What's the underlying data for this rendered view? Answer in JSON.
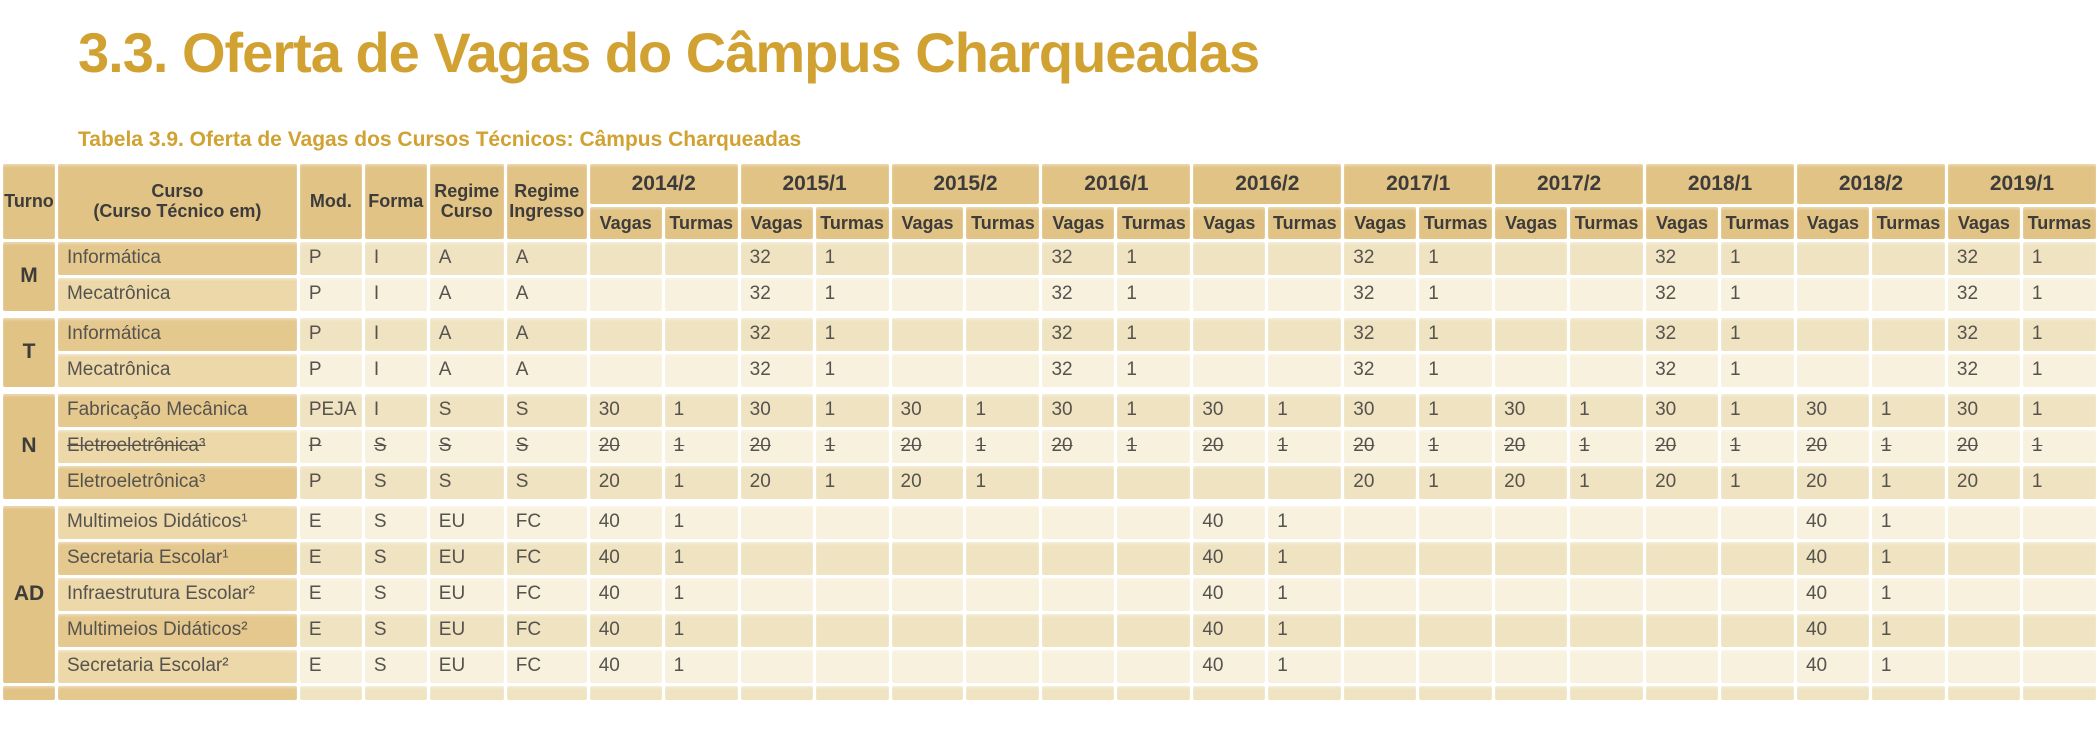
{
  "page_title": "3.3. Oferta de Vagas do Câmpus Charqueadas",
  "table_caption": "Tabela 3.9. Oferta de Vagas dos Cursos Técnicos: Câmpus Charqueadas",
  "colors": {
    "title_gold": "#d1a232",
    "header_tan": "#e2c386",
    "course_dark": "#e4c88e",
    "course_light": "#ecd8a9",
    "cell_dark": "#efe3c2",
    "cell_light": "#f8f1de",
    "header_text": "#3d3c3a",
    "cell_text": "#56534e"
  },
  "table": {
    "left_headers": [
      {
        "id": "turno",
        "lines": [
          "Turno"
        ]
      },
      {
        "id": "curso",
        "lines": [
          "Curso",
          "(Curso Técnico em)"
        ]
      },
      {
        "id": "mod",
        "lines": [
          "Mod."
        ]
      },
      {
        "id": "forma",
        "lines": [
          "Forma"
        ]
      },
      {
        "id": "regime_curso",
        "lines": [
          "Regime",
          "Curso"
        ]
      },
      {
        "id": "regime_ingresso",
        "lines": [
          "Regime",
          "Ingresso"
        ]
      }
    ],
    "semesters": [
      "2014/2",
      "2015/1",
      "2015/2",
      "2016/1",
      "2016/2",
      "2017/1",
      "2017/2",
      "2018/1",
      "2018/2",
      "2019/1"
    ],
    "sub_headers": [
      "Vagas",
      "Turmas"
    ],
    "groups": [
      {
        "turno": "M",
        "rows": [
          {
            "curso": "Informática",
            "mod": "P",
            "forma": "I",
            "regime_curso": "A",
            "regime_ingresso": "A",
            "struck": false,
            "values": [
              [
                "",
                ""
              ],
              [
                "32",
                "1"
              ],
              [
                "",
                ""
              ],
              [
                "32",
                "1"
              ],
              [
                "",
                ""
              ],
              [
                "32",
                "1"
              ],
              [
                "",
                ""
              ],
              [
                "32",
                "1"
              ],
              [
                "",
                ""
              ],
              [
                "32",
                "1"
              ]
            ]
          },
          {
            "curso": "Mecatrônica",
            "mod": "P",
            "forma": "I",
            "regime_curso": "A",
            "regime_ingresso": "A",
            "struck": false,
            "values": [
              [
                "",
                ""
              ],
              [
                "32",
                "1"
              ],
              [
                "",
                ""
              ],
              [
                "32",
                "1"
              ],
              [
                "",
                ""
              ],
              [
                "32",
                "1"
              ],
              [
                "",
                ""
              ],
              [
                "32",
                "1"
              ],
              [
                "",
                ""
              ],
              [
                "32",
                "1"
              ]
            ]
          }
        ]
      },
      {
        "turno": "T",
        "rows": [
          {
            "curso": "Informática",
            "mod": "P",
            "forma": "I",
            "regime_curso": "A",
            "regime_ingresso": "A",
            "struck": false,
            "values": [
              [
                "",
                ""
              ],
              [
                "32",
                "1"
              ],
              [
                "",
                ""
              ],
              [
                "32",
                "1"
              ],
              [
                "",
                ""
              ],
              [
                "32",
                "1"
              ],
              [
                "",
                ""
              ],
              [
                "32",
                "1"
              ],
              [
                "",
                ""
              ],
              [
                "32",
                "1"
              ]
            ]
          },
          {
            "curso": "Mecatrônica",
            "mod": "P",
            "forma": "I",
            "regime_curso": "A",
            "regime_ingresso": "A",
            "struck": false,
            "values": [
              [
                "",
                ""
              ],
              [
                "32",
                "1"
              ],
              [
                "",
                ""
              ],
              [
                "32",
                "1"
              ],
              [
                "",
                ""
              ],
              [
                "32",
                "1"
              ],
              [
                "",
                ""
              ],
              [
                "32",
                "1"
              ],
              [
                "",
                ""
              ],
              [
                "32",
                "1"
              ]
            ]
          }
        ]
      },
      {
        "turno": "N",
        "rows": [
          {
            "curso": "Fabricação Mecânica",
            "mod": "PEJA",
            "forma": "I",
            "regime_curso": "S",
            "regime_ingresso": "S",
            "struck": false,
            "values": [
              [
                "30",
                "1"
              ],
              [
                "30",
                "1"
              ],
              [
                "30",
                "1"
              ],
              [
                "30",
                "1"
              ],
              [
                "30",
                "1"
              ],
              [
                "30",
                "1"
              ],
              [
                "30",
                "1"
              ],
              [
                "30",
                "1"
              ],
              [
                "30",
                "1"
              ],
              [
                "30",
                "1"
              ]
            ]
          },
          {
            "curso": "Eletroeletrônica³",
            "mod": "P",
            "forma": "S",
            "regime_curso": "S",
            "regime_ingresso": "S",
            "struck": true,
            "values": [
              [
                "20",
                "1"
              ],
              [
                "20",
                "1"
              ],
              [
                "20",
                "1"
              ],
              [
                "20",
                "1"
              ],
              [
                "20",
                "1"
              ],
              [
                "20",
                "1"
              ],
              [
                "20",
                "1"
              ],
              [
                "20",
                "1"
              ],
              [
                "20",
                "1"
              ],
              [
                "20",
                "1"
              ]
            ]
          },
          {
            "curso": "Eletroeletrônica³",
            "mod": "P",
            "forma": "S",
            "regime_curso": "S",
            "regime_ingresso": "S",
            "struck": false,
            "values": [
              [
                "20",
                "1"
              ],
              [
                "20",
                "1"
              ],
              [
                "20",
                "1"
              ],
              [
                "",
                ""
              ],
              [
                "",
                ""
              ],
              [
                "20",
                "1"
              ],
              [
                "20",
                "1"
              ],
              [
                "20",
                "1"
              ],
              [
                "20",
                "1"
              ],
              [
                "20",
                "1"
              ]
            ]
          }
        ]
      },
      {
        "turno": "AD",
        "rows": [
          {
            "curso": "Multimeios Didáticos¹",
            "mod": "E",
            "forma": "S",
            "regime_curso": "EU",
            "regime_ingresso": "FC",
            "struck": false,
            "values": [
              [
                "40",
                "1"
              ],
              [
                "",
                ""
              ],
              [
                "",
                ""
              ],
              [
                "",
                ""
              ],
              [
                "40",
                "1"
              ],
              [
                "",
                ""
              ],
              [
                "",
                ""
              ],
              [
                "",
                ""
              ],
              [
                "40",
                "1"
              ],
              [
                "",
                ""
              ]
            ]
          },
          {
            "curso": "Secretaria Escolar¹",
            "mod": "E",
            "forma": "S",
            "regime_curso": "EU",
            "regime_ingresso": "FC",
            "struck": false,
            "values": [
              [
                "40",
                "1"
              ],
              [
                "",
                ""
              ],
              [
                "",
                ""
              ],
              [
                "",
                ""
              ],
              [
                "40",
                "1"
              ],
              [
                "",
                ""
              ],
              [
                "",
                ""
              ],
              [
                "",
                ""
              ],
              [
                "40",
                "1"
              ],
              [
                "",
                ""
              ]
            ]
          },
          {
            "curso": "Infraestrutura Escolar²",
            "mod": "E",
            "forma": "S",
            "regime_curso": "EU",
            "regime_ingresso": "FC",
            "struck": false,
            "values": [
              [
                "40",
                "1"
              ],
              [
                "",
                ""
              ],
              [
                "",
                ""
              ],
              [
                "",
                ""
              ],
              [
                "40",
                "1"
              ],
              [
                "",
                ""
              ],
              [
                "",
                ""
              ],
              [
                "",
                ""
              ],
              [
                "40",
                "1"
              ],
              [
                "",
                ""
              ]
            ]
          },
          {
            "curso": "Multimeios Didáticos²",
            "mod": "E",
            "forma": "S",
            "regime_curso": "EU",
            "regime_ingresso": "FC",
            "struck": false,
            "values": [
              [
                "40",
                "1"
              ],
              [
                "",
                ""
              ],
              [
                "",
                ""
              ],
              [
                "",
                ""
              ],
              [
                "40",
                "1"
              ],
              [
                "",
                ""
              ],
              [
                "",
                ""
              ],
              [
                "",
                ""
              ],
              [
                "40",
                "1"
              ],
              [
                "",
                ""
              ]
            ]
          },
          {
            "curso": "Secretaria Escolar²",
            "mod": "E",
            "forma": "S",
            "regime_curso": "EU",
            "regime_ingresso": "FC",
            "struck": false,
            "values": [
              [
                "40",
                "1"
              ],
              [
                "",
                ""
              ],
              [
                "",
                ""
              ],
              [
                "",
                ""
              ],
              [
                "40",
                "1"
              ],
              [
                "",
                ""
              ],
              [
                "",
                ""
              ],
              [
                "",
                ""
              ],
              [
                "40",
                "1"
              ],
              [
                "",
                ""
              ]
            ]
          }
        ]
      }
    ]
  }
}
